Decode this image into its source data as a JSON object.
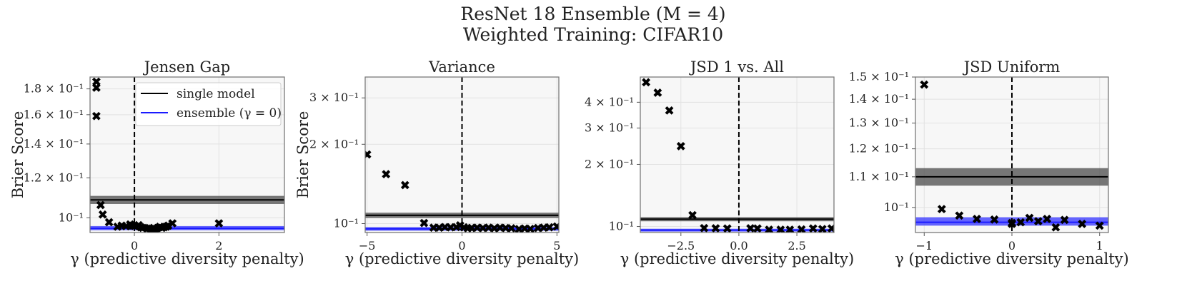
{
  "figure": {
    "title_line1": "ResNet 18 Ensemble (M = 4)",
    "title_line2": "Weighted Training: CIFAR10"
  },
  "legend": {
    "single_label": "single model",
    "ensemble_label": "ensemble (γ = 0)"
  },
  "colors": {
    "single": "#000000",
    "ensemble": "#1a1aff",
    "band_single": "#555555",
    "band_ensemble": "#3333ff",
    "markers": "#000000",
    "panel_bg": "#f7f7f7"
  },
  "chart_data": [
    {
      "type": "scatter",
      "title": "Jensen Gap",
      "xlabel": "γ (predictive diversity penalty)",
      "ylabel": "Brier Score",
      "yscale": "log",
      "xlim": [
        -1.05,
        3.55
      ],
      "ylim": [
        0.0935,
        0.19
      ],
      "xticks": [
        0,
        2
      ],
      "xtick_labels": [
        "0",
        "2"
      ],
      "yticks": [
        0.1,
        0.12,
        0.14,
        0.16,
        0.18
      ],
      "ytick_labels": [
        "10⁻¹",
        "1.2 × 10⁻¹",
        "1.4 × 10⁻¹",
        "1.6 × 10⁻¹",
        "1.8 × 10⁻¹"
      ],
      "single_model": {
        "value": 0.1085,
        "band": [
          0.1065,
          0.1105
        ]
      },
      "ensemble": {
        "value": 0.0953,
        "band": [
          0.0945,
          0.0963
        ]
      },
      "points": {
        "x": [
          -0.9,
          -0.9,
          -0.9,
          -0.8,
          -0.75,
          -0.6,
          -0.4,
          -0.3,
          -0.2,
          -0.1,
          -0.05,
          0.0,
          0.1,
          0.15,
          0.2,
          0.3,
          0.35,
          0.4,
          0.45,
          0.5,
          0.55,
          0.6,
          0.65,
          0.7,
          0.75,
          0.8,
          0.9,
          2.0
        ],
        "y": [
          0.186,
          0.181,
          0.159,
          0.106,
          0.1015,
          0.098,
          0.096,
          0.0965,
          0.0962,
          0.097,
          0.0965,
          0.0963,
          0.0967,
          0.0958,
          0.0955,
          0.0952,
          0.0955,
          0.0948,
          0.0945,
          0.095,
          0.0955,
          0.096,
          0.0955,
          0.0958,
          0.096,
          0.0965,
          0.0975,
          0.0975
        ]
      }
    },
    {
      "type": "scatter",
      "title": "Variance",
      "xlabel": "γ (predictive diversity penalty)",
      "ylabel": "Brier Score",
      "yscale": "log",
      "xlim": [
        -5.1,
        5.1
      ],
      "ylim": [
        0.0925,
        0.36
      ],
      "xticks": [
        -5,
        0,
        5
      ],
      "xtick_labels": [
        "−5",
        "0",
        "5"
      ],
      "yticks": [
        0.1,
        0.2,
        0.3
      ],
      "ytick_labels": [
        "10⁻¹",
        "2 × 10⁻¹",
        "3 × 10⁻¹"
      ],
      "single_model": {
        "value": 0.1075,
        "band": [
          0.105,
          0.11
        ]
      },
      "ensemble": {
        "value": 0.0955,
        "band": [
          0.094,
          0.097
        ]
      },
      "points": {
        "x": [
          -5.0,
          -4.0,
          -3.0,
          -2.0,
          -1.5,
          -1.2,
          -0.9,
          -0.6,
          -0.3,
          -0.1,
          0.1,
          0.3,
          0.5,
          0.8,
          1.1,
          1.4,
          1.7,
          2.0,
          2.3,
          2.6,
          3.0,
          3.3,
          3.6,
          4.0,
          4.3,
          4.6,
          5.0
        ],
        "y": [
          0.183,
          0.154,
          0.14,
          0.1005,
          0.0965,
          0.0965,
          0.097,
          0.0968,
          0.097,
          0.0985,
          0.0968,
          0.096,
          0.0963,
          0.0965,
          0.0962,
          0.0965,
          0.096,
          0.0965,
          0.0962,
          0.096,
          0.0953,
          0.0958,
          0.0955,
          0.0962,
          0.0965,
          0.0968,
          0.0975
        ]
      }
    },
    {
      "type": "scatter",
      "title": "JSD 1 vs. All",
      "xlabel": "γ (predictive diversity penalty)",
      "ylabel": "",
      "yscale": "log",
      "xlim": [
        -4.25,
        4.1
      ],
      "ylim": [
        0.0935,
        0.53
      ],
      "xticks": [
        -2.5,
        0.0,
        2.5
      ],
      "xtick_labels": [
        "−2.5",
        "0.0",
        "2.5"
      ],
      "yticks": [
        0.1,
        0.2,
        0.3,
        0.4
      ],
      "ytick_labels": [
        "10⁻¹",
        "2 × 10⁻¹",
        "3 × 10⁻¹",
        "4 × 10⁻¹"
      ],
      "single_model": {
        "value": 0.1085,
        "band": [
          0.106,
          0.111
        ]
      },
      "ensemble": {
        "value": 0.096,
        "band": [
          0.0945,
          0.0975
        ]
      },
      "points": {
        "x": [
          -4.0,
          -3.5,
          -3.0,
          -2.5,
          -2.0,
          -1.5,
          -1.0,
          -0.5,
          0.5,
          0.8,
          1.3,
          1.8,
          2.2,
          2.7,
          3.2,
          3.6,
          4.0
        ],
        "y": [
          0.5,
          0.445,
          0.365,
          0.245,
          0.1135,
          0.0982,
          0.098,
          0.0978,
          0.098,
          0.0978,
          0.0965,
          0.0965,
          0.0965,
          0.0968,
          0.0978,
          0.0972,
          0.0978
        ]
      }
    },
    {
      "type": "scatter",
      "title": "JSD Uniform",
      "xlabel": "γ (predictive diversity penalty)",
      "ylabel": "",
      "yscale": "log",
      "xlim": [
        -1.1,
        1.1
      ],
      "ylim": [
        0.0925,
        0.15
      ],
      "xticks": [
        -1,
        0,
        1
      ],
      "xtick_labels": [
        "−1",
        "0",
        "1"
      ],
      "yticks": [
        0.1,
        0.11,
        0.12,
        0.13,
        0.14,
        0.15
      ],
      "ytick_labels": [
        "10⁻¹",
        "1.1 × 10⁻¹",
        "1.2 × 10⁻¹",
        "1.3 × 10⁻¹",
        "1.4 × 10⁻¹",
        "1.5 × 10⁻¹"
      ],
      "single_model": {
        "value": 0.11,
        "band": [
          0.107,
          0.113
        ]
      },
      "ensemble": {
        "value": 0.0955,
        "band": [
          0.0945,
          0.097
        ]
      },
      "points": {
        "x": [
          -1.0,
          -0.8,
          -0.6,
          -0.4,
          -0.2,
          0.0,
          0.0,
          0.1,
          0.2,
          0.3,
          0.4,
          0.5,
          0.6,
          0.8,
          1.0
        ],
        "y": [
          0.1465,
          0.0995,
          0.0975,
          0.0965,
          0.0963,
          0.0953,
          0.095,
          0.0955,
          0.0968,
          0.0958,
          0.0965,
          0.094,
          0.0962,
          0.095,
          0.0945
        ]
      }
    }
  ]
}
